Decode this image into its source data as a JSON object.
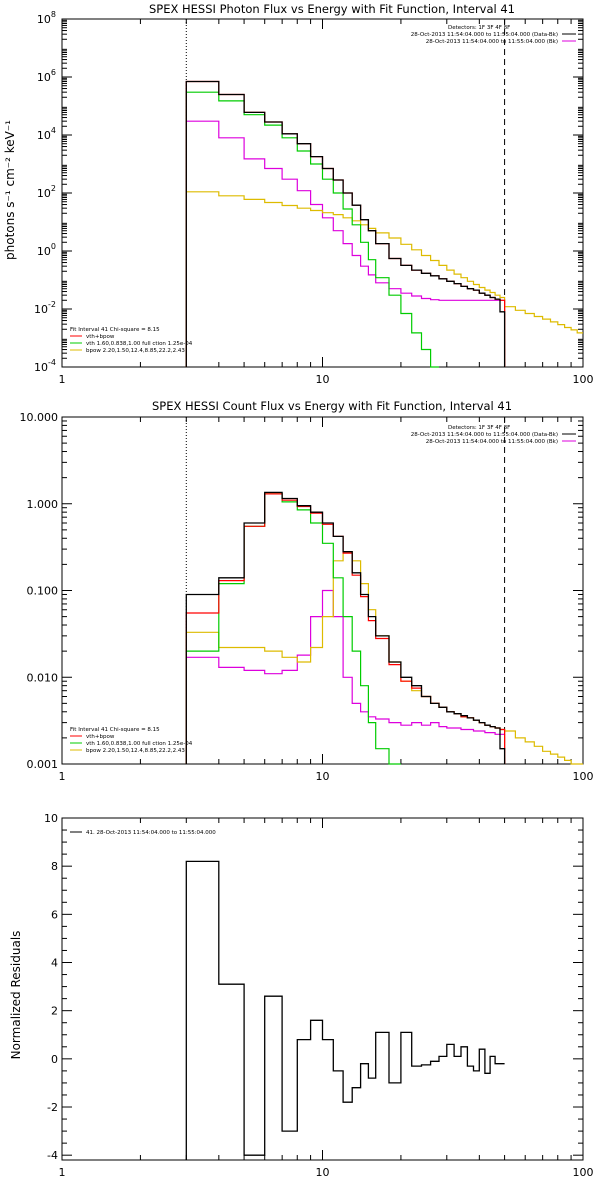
{
  "colors": {
    "data": "#000000",
    "fit_total": "#ff0000",
    "vth": "#00cc00",
    "bpow": "#ddbb00",
    "bkg": "#dd00dd",
    "vline": "#000000"
  },
  "chart_data": [
    {
      "type": "line",
      "id": "photon",
      "title": "SPEX HESSI Photon Flux vs Energy with Fit Function, Interval 41",
      "ylabel": "photons s⁻¹ cm⁻² keV⁻¹",
      "xscale": "log",
      "yscale": "log",
      "xlim": [
        1,
        100
      ],
      "ylim": [
        0.0001,
        100000000
      ],
      "xticks": [
        1,
        10,
        100
      ],
      "xticklabels": [
        "1",
        "10",
        "100"
      ],
      "yticks": [
        0.0001,
        0.01,
        1,
        100,
        10000,
        1000000,
        100000000
      ],
      "ytick_exp": [
        "-4",
        "-2",
        "0",
        "2",
        "4",
        "6",
        "8"
      ],
      "legend_tr": [
        "Detectors: 1F 3F 4F 8F",
        "28-Oct-2013 11:54:04.000 to 11:55:04.000 (Data-Bk)",
        "28-Oct-2013 11:54:04.000 to 11:55:04.000 (Bk)"
      ],
      "legend_bl": [
        "Fit Interval 41   Chi-square = 8.15",
        "vth+bpow",
        "vth 1.60,0.838,1.00  full ction 1.25e-04",
        "bpow 2.20,1.50,12.4,8.85,22.2,2.43"
      ],
      "vlines": {
        "dotted": 3,
        "dashed": 50
      },
      "edges": [
        3,
        4,
        5,
        6,
        7,
        8,
        9,
        10,
        11,
        12,
        13,
        14,
        15,
        16,
        18,
        20,
        22,
        24,
        26,
        28,
        30,
        32,
        34,
        36,
        38,
        40,
        42,
        44,
        46,
        48,
        50
      ],
      "series": [
        {
          "key": "data",
          "values": [
            700000,
            250000,
            60000,
            28000,
            11000,
            5000,
            1800,
            700,
            280,
            100,
            38,
            12,
            5,
            1.8,
            0.55,
            0.32,
            0.22,
            0.17,
            0.14,
            0.11,
            0.09,
            0.075,
            0.06,
            0.05,
            0.045,
            0.035,
            0.03,
            0.025,
            0.022,
            0.008
          ]
        },
        {
          "key": "fit_total",
          "values": [
            700000,
            250000,
            60000,
            28000,
            11000,
            5000,
            1800,
            700,
            280,
            100,
            38,
            12,
            5,
            1.8,
            0.55,
            0.32,
            0.22,
            0.17,
            0.14,
            0.11,
            0.09,
            0.075,
            0.06,
            0.05,
            0.045,
            0.035,
            0.03,
            0.025,
            0.022,
            0.02
          ]
        },
        {
          "key": "vth",
          "values": [
            300000,
            150000,
            50000,
            22000,
            8000,
            2800,
            1000,
            300,
            100,
            28,
            8,
            2,
            0.5,
            0.12,
            0.03,
            0.007,
            0.0015,
            0.0004,
            9e-05
          ]
        },
        {
          "key": "bpow",
          "values": [
            110,
            80,
            60,
            47,
            37,
            30,
            25,
            21,
            18,
            14,
            11,
            8,
            6,
            4.2,
            2.8,
            1.7,
            1.1,
            0.7,
            0.47,
            0.32,
            0.22,
            0.16,
            0.12,
            0.09,
            0.07,
            0.055,
            0.045,
            0.037,
            0.03,
            0.025
          ]
        },
        {
          "key": "bkg",
          "values": [
            30000,
            8000,
            1500,
            700,
            300,
            120,
            40,
            14,
            5,
            1.8,
            0.7,
            0.3,
            0.15,
            0.08,
            0.05,
            0.035,
            0.028,
            0.023,
            0.021,
            0.02,
            0.02,
            0.02,
            0.02,
            0.02,
            0.02,
            0.02,
            0.02,
            0.02,
            0.02,
            0.02
          ]
        }
      ],
      "bpow_extension": {
        "edges": [
          50,
          55,
          60,
          65,
          70,
          75,
          80,
          85,
          90,
          95,
          100
        ],
        "values": [
          0.012,
          0.009,
          0.007,
          0.0055,
          0.0045,
          0.0036,
          0.0029,
          0.0023,
          0.0019,
          0.0015
        ]
      }
    },
    {
      "type": "line",
      "id": "count",
      "title": "SPEX HESSI Count Flux vs Energy with Fit Function, Interval 41",
      "xscale": "log",
      "yscale": "log",
      "xlim": [
        1,
        100
      ],
      "ylim": [
        0.001,
        10
      ],
      "xticks": [
        1,
        10,
        100
      ],
      "xticklabels": [
        "1",
        "10",
        "100"
      ],
      "yticks": [
        0.001,
        0.01,
        0.1,
        1,
        10
      ],
      "yticklabels": [
        "0.001",
        "0.010",
        "0.100",
        "1.000",
        "10.000"
      ],
      "legend_tr": [
        "Detectors: 1F 3F 4F 8F",
        "28-Oct-2013 11:54:04.000 to 11:55:04.000 (Data-Bk)",
        "28-Oct-2013 11:54:04.000 to 11:55:04.000 (Bk)"
      ],
      "legend_bl": [
        "Fit Interval 41   Chi-square = 8.15",
        "vth+bpow",
        "vth 1.60,0.838,1.00  full ction 1.25e-04",
        "bpow 2.20,1.50,12.4,8.85,22.2,2.43"
      ],
      "vlines": {
        "dotted": 3,
        "dashed": 50
      },
      "edges": [
        3,
        4,
        5,
        6,
        7,
        8,
        9,
        10,
        11,
        12,
        13,
        14,
        15,
        16,
        18,
        20,
        22,
        24,
        26,
        28,
        30,
        32,
        34,
        36,
        38,
        40,
        42,
        44,
        46,
        48,
        50
      ],
      "series": [
        {
          "key": "data",
          "values": [
            0.09,
            0.14,
            0.6,
            1.35,
            1.15,
            0.95,
            0.8,
            0.6,
            0.42,
            0.28,
            0.16,
            0.09,
            0.05,
            0.03,
            0.015,
            0.01,
            0.008,
            0.006,
            0.005,
            0.0045,
            0.004,
            0.0038,
            0.0036,
            0.0034,
            0.0032,
            0.003,
            0.0028,
            0.0027,
            0.0026,
            0.0015
          ]
        },
        {
          "key": "fit_total",
          "values": [
            0.055,
            0.13,
            0.55,
            1.3,
            1.1,
            0.93,
            0.78,
            0.58,
            0.42,
            0.27,
            0.15,
            0.085,
            0.045,
            0.028,
            0.014,
            0.009,
            0.0075,
            0.006,
            0.005,
            0.0045,
            0.004,
            0.0038,
            0.0035,
            0.0034,
            0.0032,
            0.003,
            0.0028,
            0.0027,
            0.0026,
            0.0025
          ]
        },
        {
          "key": "vth",
          "values": [
            0.02,
            0.12,
            0.55,
            1.3,
            1.05,
            0.85,
            0.6,
            0.35,
            0.14,
            0.05,
            0.02,
            0.008,
            0.003,
            0.0015,
            0.0006
          ]
        },
        {
          "key": "bpow",
          "values": [
            0.033,
            0.022,
            0.022,
            0.02,
            0.017,
            0.015,
            0.022,
            0.05,
            0.22,
            0.28,
            0.22,
            0.12,
            0.06,
            0.03,
            0.015,
            0.009,
            0.007,
            0.006,
            0.005,
            0.0045,
            0.004,
            0.0038,
            0.0035,
            0.0034,
            0.0032,
            0.003,
            0.0028,
            0.0027,
            0.0026,
            0.0025
          ]
        },
        {
          "key": "bkg",
          "values": [
            0.017,
            0.013,
            0.012,
            0.011,
            0.012,
            0.018,
            0.05,
            0.1,
            0.05,
            0.01,
            0.005,
            0.004,
            0.0035,
            0.0033,
            0.003,
            0.0028,
            0.003,
            0.0028,
            0.003,
            0.0027,
            0.0026,
            0.0026,
            0.0025,
            0.0025,
            0.0024,
            0.0024,
            0.0023,
            0.0023,
            0.0022,
            0.0022
          ]
        }
      ],
      "bpow_extension": {
        "edges": [
          50,
          55,
          60,
          65,
          70,
          75,
          80,
          85,
          90,
          95,
          100
        ],
        "values": [
          0.0024,
          0.002,
          0.0018,
          0.0016,
          0.0014,
          0.0013,
          0.0012,
          0.0011,
          0.001,
          0.00095
        ]
      }
    },
    {
      "type": "line",
      "id": "residuals",
      "ylabel": "Normalized Residuals",
      "xscale": "log",
      "yscale": "linear",
      "xlim": [
        1,
        100
      ],
      "ylim": [
        -4.2,
        10
      ],
      "xticks": [
        1,
        10,
        100
      ],
      "xticklabels": [
        "1",
        "10",
        "100"
      ],
      "yticks": [
        -4,
        -2,
        0,
        2,
        4,
        6,
        8,
        10
      ],
      "yticklabels": [
        "-4",
        "-2",
        "0",
        "2",
        "4",
        "6",
        "8",
        "10"
      ],
      "legend_tl": [
        "41. 28-Oct-2013 11:54:04.000 to 11:55:04.000"
      ],
      "edges": [
        3,
        4,
        5,
        6,
        7,
        8,
        9,
        10,
        11,
        12,
        13,
        14,
        15,
        16,
        18,
        20,
        22,
        24,
        26,
        28,
        30,
        32,
        34,
        36,
        38,
        40,
        42,
        44,
        46,
        48,
        50
      ],
      "series": [
        {
          "key": "data",
          "values": [
            8.2,
            3.1,
            -4,
            2.6,
            -3,
            0.8,
            1.6,
            0.8,
            -0.5,
            -1.8,
            -1.2,
            -0.2,
            -0.8,
            1.1,
            -1,
            1.1,
            -0.3,
            -0.25,
            -0.1,
            0.1,
            0.6,
            0.1,
            0.5,
            -0.3,
            -0.5,
            0.4,
            -0.6,
            0.1,
            -0.2,
            -0.2
          ]
        }
      ]
    }
  ]
}
